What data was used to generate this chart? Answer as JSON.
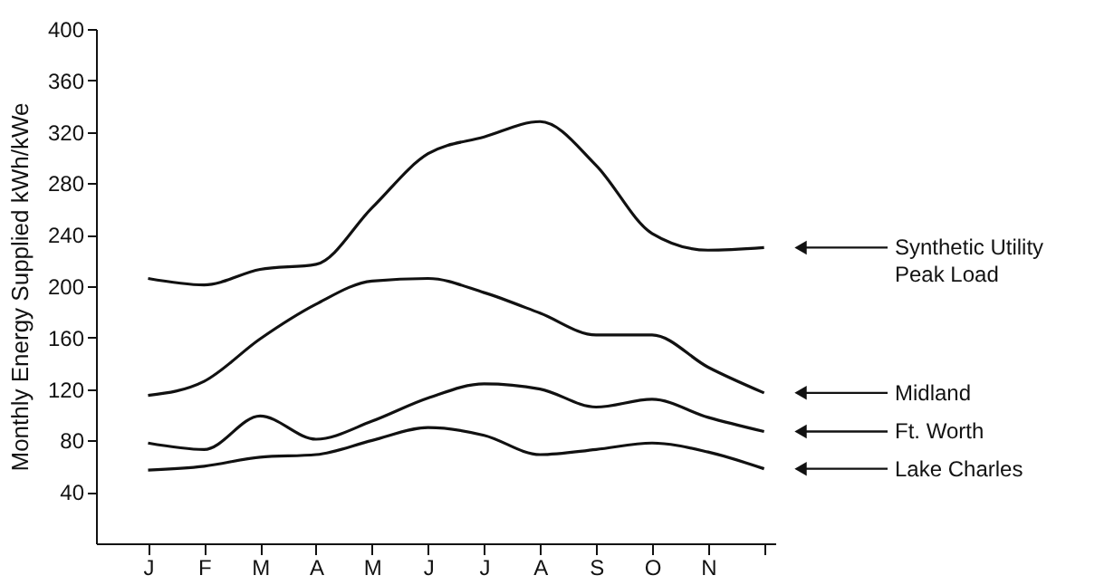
{
  "chart_data": {
    "type": "line",
    "ylabel": "Monthly Energy Supplied kWh/kWe",
    "categories": [
      "J",
      "F",
      "M",
      "A",
      "M",
      "J",
      "J",
      "A",
      "S",
      "O",
      "N",
      null
    ],
    "ylim": [
      0,
      400
    ],
    "yticks": [
      40,
      80,
      120,
      160,
      200,
      240,
      280,
      320,
      360,
      400
    ],
    "grid": false,
    "legend": "right",
    "marker": "none",
    "line_style": "solid",
    "series": [
      {
        "name": "Synthetic Utility Peak Load",
        "color": "#111111",
        "values": [
          206,
          201,
          213,
          217,
          261,
          303,
          316,
          328,
          294,
          241,
          228,
          230
        ]
      },
      {
        "name": "Midland",
        "color": "#111111",
        "values": [
          115,
          126,
          159,
          186,
          204,
          206,
          195,
          179,
          162,
          162,
          137,
          117
        ]
      },
      {
        "name": "Ft. Worth",
        "color": "#111111",
        "values": [
          78,
          73,
          99,
          81,
          95,
          113,
          124,
          120,
          106,
          112,
          98,
          87
        ]
      },
      {
        "name": "Lake Charles",
        "color": "#111111",
        "values": [
          57,
          60,
          67,
          69,
          80,
          90,
          84,
          69,
          73,
          78,
          71,
          58
        ]
      }
    ]
  }
}
